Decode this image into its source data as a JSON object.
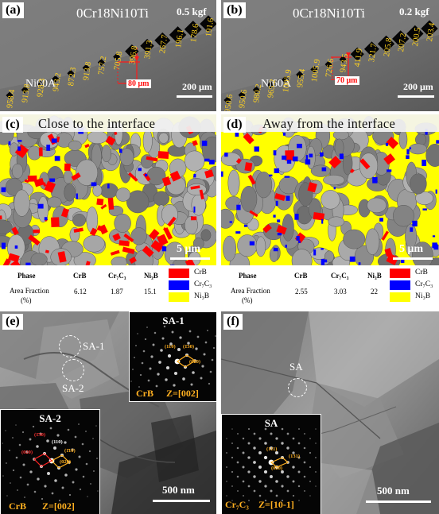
{
  "panel_a": {
    "label": "(a)",
    "material_top": "0Cr18Ni10Ti",
    "material_bottom": "Ni60A",
    "load": "0.5 kgf",
    "scale": "200 μm",
    "distance": "80 μm",
    "hv_values": [
      "958.4",
      "913.8",
      "928.3",
      "943.2",
      "872.3",
      "913.8",
      "757.2",
      "705.8",
      "396.8",
      "391.3",
      "267.7",
      "196.1",
      "178.6",
      "191.6"
    ]
  },
  "panel_b": {
    "label": "(b)",
    "material_top": "0Cr18Ni10Ti",
    "material_bottom": "Ni60A",
    "load": "0.2 kgf",
    "scale": "200 μm",
    "distance": "70 μm",
    "hv_values": [
      "950.6",
      "950.6",
      "980.2",
      "965.2",
      "1005.9",
      "955.4",
      "1005.9",
      "726.6",
      "943.5",
      "411.9",
      "321.7",
      "205.8",
      "207.2",
      "200.5",
      "203.4"
    ]
  },
  "panel_c": {
    "label": "(c)",
    "title": "Close to the interface",
    "scale": "5 μm",
    "table": {
      "headers": [
        "Phase",
        "CrB",
        "Cr₇C₃",
        "Ni₃B"
      ],
      "row_label": "Area Fraction",
      "row_unit": "(%)",
      "values": [
        "6.12",
        "1.87",
        "15.1"
      ]
    }
  },
  "panel_d": {
    "label": "(d)",
    "title": "Away from the interface",
    "scale": "5 μm",
    "table": {
      "headers": [
        "Phase",
        "CrB",
        "Cr₇C₃",
        "Ni₃B"
      ],
      "row_label": "Area Fraction",
      "row_unit": "(%)",
      "values": [
        "2.55",
        "3.03",
        "22"
      ]
    }
  },
  "legend": [
    {
      "name": "CrB",
      "color": "#ff0000"
    },
    {
      "name": "Cr₇C₃",
      "color": "#0000ff"
    },
    {
      "name": "Ni₃B",
      "color": "#ffff00"
    }
  ],
  "panel_e": {
    "label": "(e)",
    "sa1": "SA-1",
    "sa2": "SA-2",
    "scale": "500 nm",
    "inset1": {
      "title": "SA-1",
      "phase": "CrB",
      "zone": "Z=[002]",
      "idx": [
        "(110)",
        "(1̄30)",
        "(020)"
      ]
    },
    "inset2": {
      "title": "SA-2",
      "phase": "CrB",
      "zone": "Z=[002]",
      "idx": [
        "(1̄30)",
        "(110)",
        "(020)",
        "(1̄10)",
        "(020)"
      ]
    }
  },
  "panel_f": {
    "label": "(f)",
    "sa": "SA",
    "scale": "500 nm",
    "inset": {
      "title": "SA",
      "phase": "Cr₇C₃",
      "zone": "Z=[10-1]",
      "idx": [
        "(111)",
        "(131)",
        "(020)"
      ]
    }
  }
}
